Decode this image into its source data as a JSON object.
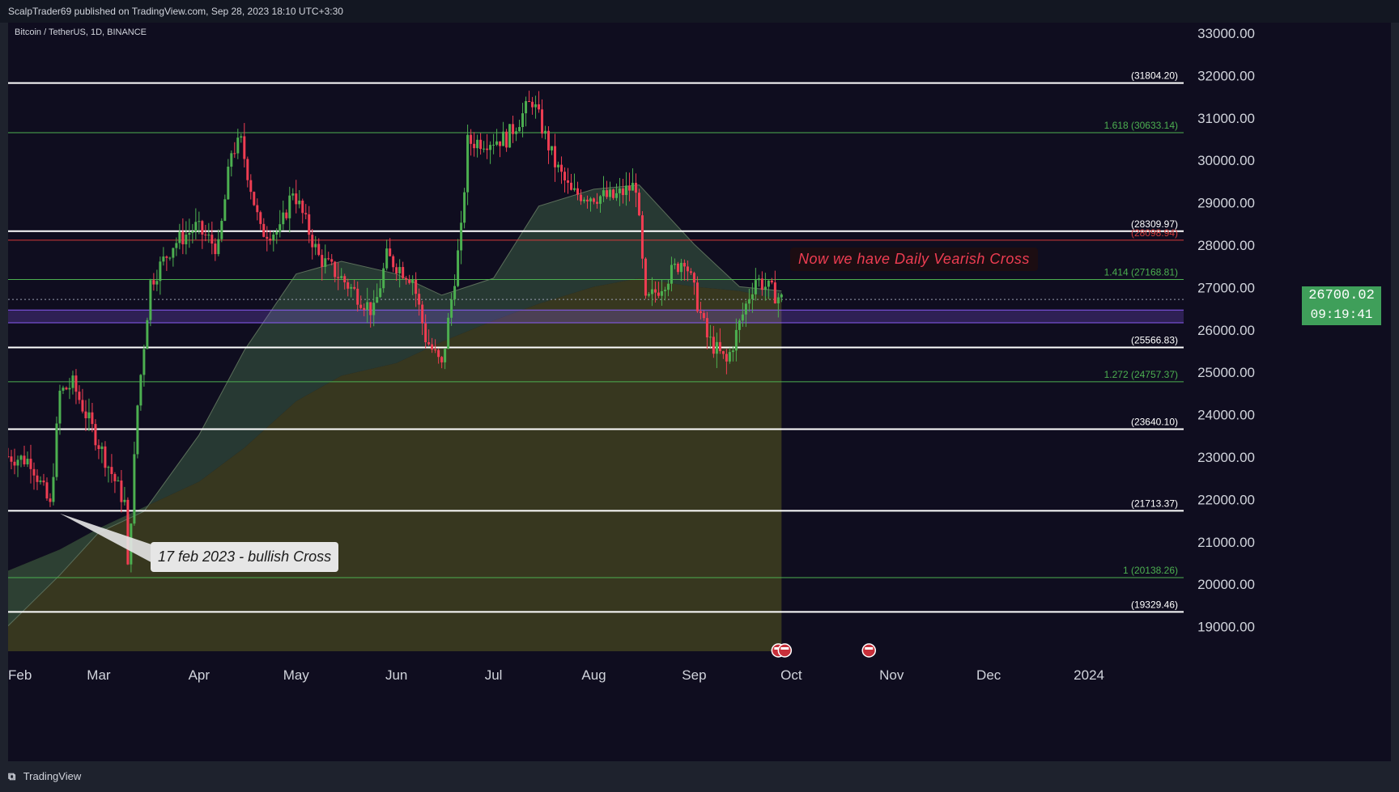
{
  "header": {
    "published_text": "ScalpTrader69 published on TradingView.com, Sep 28, 2023 18:10 UTC+3:30"
  },
  "symbol": {
    "title": "Bitcoin / TetherUS, 1D, BINANCE"
  },
  "footer": {
    "brand_icon": "tv-logo-icon",
    "brand": "TradingView"
  },
  "colors": {
    "background": "#0f0d1f",
    "up": "#4caf50",
    "down": "#ef3d52",
    "white_level": "#ffffff",
    "green_level": "#4caf50",
    "red_level": "#d33a3a",
    "purple_zone": "#8a5cf5",
    "axis_text": "#d1d4dc"
  },
  "current_price": {
    "price": "26700.02",
    "countdown": "09:19:41"
  },
  "annotations": {
    "bearish": "Now we have Daily Vearish Cross",
    "bullish": "17 feb 2023 - bullish Cross"
  },
  "chart_data": {
    "type": "candlestick",
    "title": "Bitcoin / TetherUS, 1D, BINANCE",
    "ylim": [
      18000,
      33000
    ],
    "y_ticks": [
      "33000.00",
      "32000.00",
      "31000.00",
      "30000.00",
      "29000.00",
      "28000.00",
      "27000.00",
      "26000.00",
      "25000.00",
      "24000.00",
      "23000.00",
      "22000.00",
      "21000.00",
      "20000.00",
      "19000.00"
    ],
    "x_ticks": [
      "Feb",
      "Mar",
      "Apr",
      "May",
      "Jun",
      "Jul",
      "Aug",
      "Sep",
      "Oct",
      "Nov",
      "Dec",
      "2024"
    ],
    "x_range": [
      "2023-02-01",
      "2024-01-31"
    ],
    "levels": [
      {
        "label": "(31804.20)",
        "value": 31804.2,
        "kind": "white"
      },
      {
        "label": "1.618 (30633.14)",
        "value": 30633.14,
        "kind": "green"
      },
      {
        "label": "(28309.97)",
        "value": 28309.97,
        "kind": "white"
      },
      {
        "label": "(28098.94)",
        "value": 28098.94,
        "kind": "red"
      },
      {
        "label": "1.414 (27168.81)",
        "value": 27168.81,
        "kind": "green"
      },
      {
        "label": "(25566.83)",
        "value": 25566.83,
        "kind": "white"
      },
      {
        "label": "1.272 (24757.37)",
        "value": 24757.37,
        "kind": "green"
      },
      {
        "label": "(23640.10)",
        "value": 23640.1,
        "kind": "white"
      },
      {
        "label": "(21713.37)",
        "value": 21713.37,
        "kind": "white"
      },
      {
        "label": "1 (20138.26)",
        "value": 20138.26,
        "kind": "green"
      },
      {
        "label": "(19329.46)",
        "value": 19329.46,
        "kind": "white"
      }
    ],
    "zone": {
      "low": 26150,
      "high": 26450
    },
    "price_path": [
      [
        "2023-02-01",
        23000
      ],
      [
        "2023-02-08",
        22900
      ],
      [
        "2023-02-14",
        21800
      ],
      [
        "2023-02-17",
        24500
      ],
      [
        "2023-02-21",
        24700
      ],
      [
        "2023-03-01",
        23300
      ],
      [
        "2023-03-09",
        21900
      ],
      [
        "2023-03-10",
        20300
      ],
      [
        "2023-03-13",
        24200
      ],
      [
        "2023-03-17",
        27100
      ],
      [
        "2023-03-24",
        28000
      ],
      [
        "2023-03-31",
        28400
      ],
      [
        "2023-04-07",
        27900
      ],
      [
        "2023-04-11",
        30200
      ],
      [
        "2023-04-14",
        30400
      ],
      [
        "2023-04-20",
        28300
      ],
      [
        "2023-04-26",
        28300
      ],
      [
        "2023-04-30",
        29300
      ],
      [
        "2023-05-08",
        27700
      ],
      [
        "2023-05-15",
        27200
      ],
      [
        "2023-05-25",
        26400
      ],
      [
        "2023-05-29",
        27700
      ],
      [
        "2023-06-06",
        27200
      ],
      [
        "2023-06-10",
        25800
      ],
      [
        "2023-06-15",
        25100
      ],
      [
        "2023-06-21",
        28300
      ],
      [
        "2023-06-23",
        30400
      ],
      [
        "2023-07-05",
        30500
      ],
      [
        "2023-07-13",
        31400
      ],
      [
        "2023-07-20",
        29900
      ],
      [
        "2023-07-25",
        29200
      ],
      [
        "2023-08-07",
        29100
      ],
      [
        "2023-08-14",
        29400
      ],
      [
        "2023-08-17",
        26600
      ],
      [
        "2023-08-29",
        27700
      ],
      [
        "2023-09-05",
        25800
      ],
      [
        "2023-09-11",
        25200
      ],
      [
        "2023-09-18",
        26800
      ],
      [
        "2023-09-20",
        27200
      ],
      [
        "2023-09-28",
        26700
      ]
    ],
    "sma_fast_path": [
      [
        "2023-02-01",
        19000
      ],
      [
        "2023-02-17",
        20200
      ],
      [
        "2023-03-01",
        21200
      ],
      [
        "2023-03-15",
        21700
      ],
      [
        "2023-04-01",
        23500
      ],
      [
        "2023-04-15",
        25500
      ],
      [
        "2023-05-01",
        27300
      ],
      [
        "2023-05-15",
        27600
      ],
      [
        "2023-06-01",
        27300
      ],
      [
        "2023-06-15",
        26800
      ],
      [
        "2023-07-01",
        27200
      ],
      [
        "2023-07-15",
        28900
      ],
      [
        "2023-08-01",
        29300
      ],
      [
        "2023-08-15",
        29400
      ],
      [
        "2023-09-01",
        28000
      ],
      [
        "2023-09-15",
        27000
      ],
      [
        "2023-09-28",
        26900
      ]
    ],
    "sma_slow_path": [
      [
        "2023-02-01",
        20300
      ],
      [
        "2023-02-17",
        20800
      ],
      [
        "2023-03-01",
        21300
      ],
      [
        "2023-03-15",
        21800
      ],
      [
        "2023-04-01",
        22400
      ],
      [
        "2023-04-15",
        23200
      ],
      [
        "2023-05-01",
        24300
      ],
      [
        "2023-05-15",
        24900
      ],
      [
        "2023-06-01",
        25200
      ],
      [
        "2023-06-15",
        25700
      ],
      [
        "2023-07-01",
        26200
      ],
      [
        "2023-07-15",
        26600
      ],
      [
        "2023-08-01",
        27000
      ],
      [
        "2023-08-15",
        27200
      ],
      [
        "2023-09-01",
        27000
      ],
      [
        "2023-09-15",
        26900
      ],
      [
        "2023-09-28",
        26700
      ]
    ],
    "events_icon": "us-flag-icon",
    "event_dates": [
      "2023-09-27",
      "2023-09-29",
      "2023-10-25"
    ]
  }
}
